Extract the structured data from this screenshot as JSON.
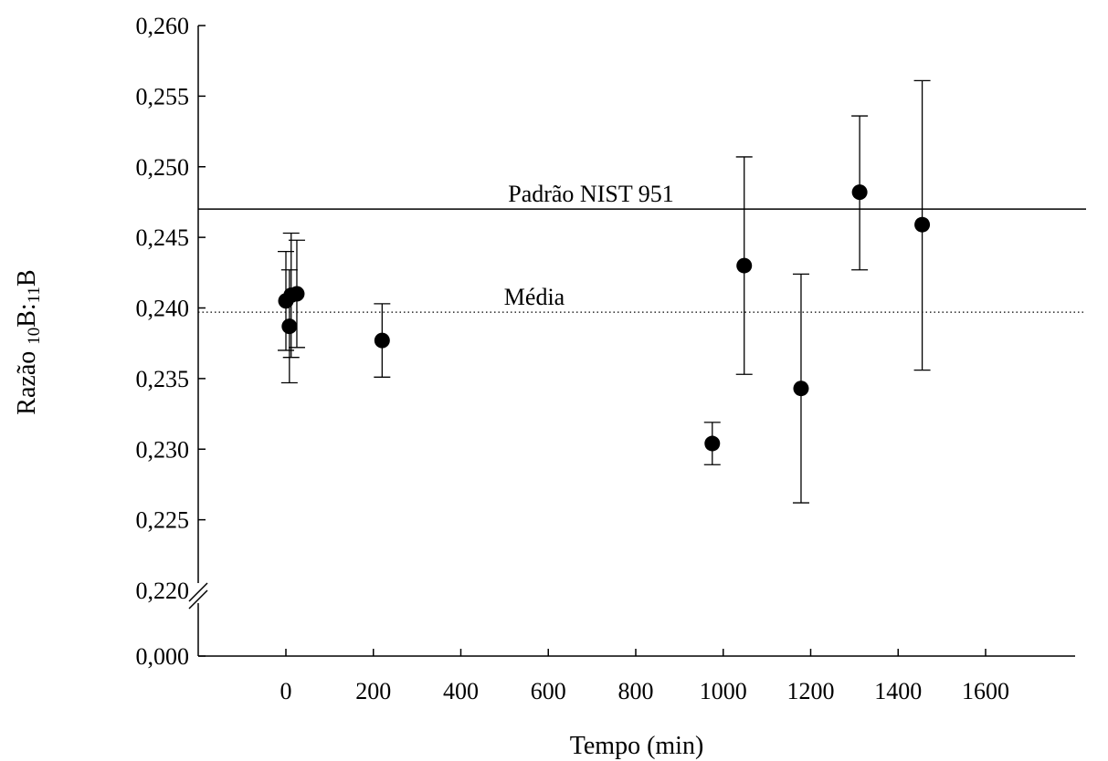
{
  "chart_data": {
    "type": "scatter",
    "title": "",
    "xlabel": "Tempo (min)",
    "ylabel": {
      "prefix": "Razão ",
      "iso1_mass": "10",
      "iso1_symbol": "B:",
      "iso2_mass": "11",
      "iso2_symbol": "B"
    },
    "xlim": [
      -180,
      1620
    ],
    "x_ticks": [
      0,
      200,
      400,
      600,
      800,
      1000,
      1200,
      1400,
      1600
    ],
    "x_tick_labels": [
      "0",
      "200",
      "400",
      "600",
      "800",
      "1000",
      "1200",
      "1400",
      "1600"
    ],
    "ylim": [
      0.22,
      0.26
    ],
    "y_axis_break": true,
    "y_ticks": [
      0.22,
      0.225,
      0.23,
      0.235,
      0.24,
      0.245,
      0.25,
      0.255,
      0.26
    ],
    "y_tick_labels": [
      "0,220",
      "0,225",
      "0,230",
      "0,235",
      "0,240",
      "0,245",
      "0,250",
      "0,255",
      "0,260"
    ],
    "y_break_tick": {
      "value": 0.0,
      "label": "0,000"
    },
    "points": [
      {
        "x": 0,
        "y": 0.2405,
        "err_low": 0.237,
        "err_high": 0.244
      },
      {
        "x": 8,
        "y": 0.2387,
        "err_low": 0.2347,
        "err_high": 0.2427
      },
      {
        "x": 12,
        "y": 0.2409,
        "err_low": 0.2365,
        "err_high": 0.2453
      },
      {
        "x": 25,
        "y": 0.241,
        "err_low": 0.2372,
        "err_high": 0.2448
      },
      {
        "x": 220,
        "y": 0.2377,
        "err_low": 0.2351,
        "err_high": 0.2403
      },
      {
        "x": 975,
        "y": 0.2304,
        "err_low": 0.2289,
        "err_high": 0.2319
      },
      {
        "x": 1048,
        "y": 0.243,
        "err_low": 0.2353,
        "err_high": 0.2507
      },
      {
        "x": 1178,
        "y": 0.2343,
        "err_low": 0.2262,
        "err_high": 0.2424
      },
      {
        "x": 1312,
        "y": 0.2482,
        "err_low": 0.2427,
        "err_high": 0.2536
      },
      {
        "x": 1455,
        "y": 0.2459,
        "err_low": 0.2356,
        "err_high": 0.2561
      }
    ],
    "reference_lines": [
      {
        "label": "Padrão NIST 951",
        "y": 0.247,
        "style": "solid"
      },
      {
        "label": "Média",
        "y": 0.2397,
        "style": "dotted"
      }
    ],
    "grid": false,
    "legend": "none",
    "colors": {
      "marker": "#000000",
      "axis": "#000000",
      "line": "#000000",
      "background": "#ffffff"
    }
  }
}
